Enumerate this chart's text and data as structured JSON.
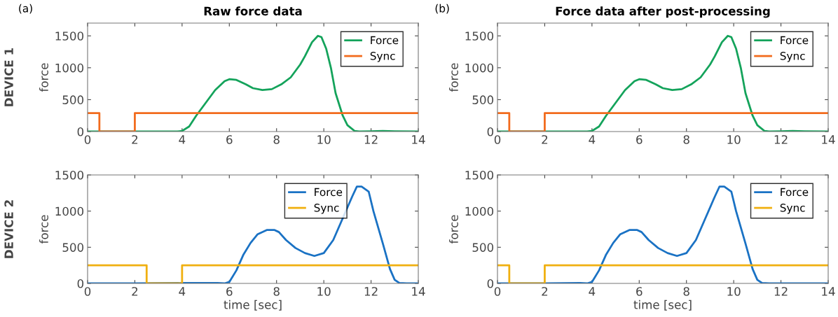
{
  "chart_data": [
    {
      "type": "line",
      "title": "Raw force data",
      "ylabel": "force",
      "annotations": [
        "(a)",
        "DEVICE 1"
      ],
      "xlim": [
        0,
        14
      ],
      "ylim": [
        0,
        1700
      ],
      "xticks": [
        0,
        2,
        4,
        6,
        8,
        10,
        12,
        14
      ],
      "yticks": [
        0,
        500,
        1000,
        1500
      ],
      "legend": "top right",
      "grid": false,
      "series": [
        {
          "name": "Force",
          "color": "#14a35b",
          "x": [
            0,
            1,
            2,
            3,
            3.8,
            4.0,
            4.3,
            4.6,
            5.0,
            5.4,
            5.8,
            6.0,
            6.3,
            6.7,
            7.0,
            7.4,
            7.8,
            8.2,
            8.6,
            9.0,
            9.2,
            9.5,
            9.75,
            9.9,
            10.1,
            10.3,
            10.5,
            10.8,
            11.0,
            11.3,
            11.5,
            12,
            12.5,
            13,
            14
          ],
          "values": [
            0,
            0,
            0,
            0,
            0,
            10,
            80,
            250,
            450,
            650,
            790,
            820,
            810,
            740,
            680,
            650,
            665,
            740,
            850,
            1050,
            1180,
            1400,
            1500,
            1480,
            1300,
            1000,
            600,
            250,
            100,
            10,
            0,
            5,
            10,
            5,
            0
          ]
        },
        {
          "name": "Sync",
          "type": "step",
          "color": "#f26b1d",
          "x": [
            0,
            0.5,
            2,
            14
          ],
          "values": [
            290,
            0,
            290,
            290
          ]
        }
      ]
    },
    {
      "type": "line",
      "title": "Force data after post-processing",
      "ylabel": "force",
      "annotations": [
        "(b)"
      ],
      "xlim": [
        0,
        14
      ],
      "ylim": [
        0,
        1700
      ],
      "xticks": [
        0,
        2,
        4,
        6,
        8,
        10,
        12,
        14
      ],
      "yticks": [
        0,
        500,
        1000,
        1500
      ],
      "legend": "top right",
      "grid": false,
      "series": [
        {
          "name": "Force",
          "color": "#14a35b",
          "x": [
            0,
            1,
            2,
            3,
            3.8,
            4.0,
            4.3,
            4.6,
            5.0,
            5.4,
            5.8,
            6.0,
            6.3,
            6.7,
            7.0,
            7.4,
            7.8,
            8.2,
            8.6,
            9.0,
            9.2,
            9.5,
            9.75,
            9.9,
            10.1,
            10.3,
            10.5,
            10.8,
            11.0,
            11.3,
            11.5,
            12,
            12.5,
            13,
            14
          ],
          "values": [
            0,
            0,
            0,
            0,
            0,
            10,
            80,
            250,
            450,
            650,
            790,
            820,
            810,
            740,
            680,
            650,
            665,
            740,
            850,
            1050,
            1180,
            1400,
            1500,
            1480,
            1300,
            1000,
            600,
            250,
            100,
            10,
            0,
            5,
            10,
            5,
            0
          ]
        },
        {
          "name": "Sync",
          "type": "step",
          "color": "#f26b1d",
          "x": [
            0,
            0.5,
            2,
            14
          ],
          "values": [
            290,
            0,
            290,
            290
          ]
        }
      ]
    },
    {
      "type": "line",
      "xlabel": "time [sec]",
      "ylabel": "force",
      "annotations": [
        "DEVICE 2"
      ],
      "xlim": [
        0,
        14
      ],
      "ylim": [
        0,
        1500
      ],
      "xticks": [
        0,
        2,
        4,
        6,
        8,
        10,
        12,
        14
      ],
      "yticks": [
        0,
        500,
        1000,
        1500
      ],
      "legend": "top",
      "grid": false,
      "series": [
        {
          "name": "Force",
          "color": "#1a72c4",
          "x": [
            0,
            2,
            4,
            5.5,
            5.8,
            6.0,
            6.3,
            6.6,
            6.9,
            7.2,
            7.6,
            7.9,
            8.1,
            8.4,
            8.8,
            9.2,
            9.6,
            10.0,
            10.4,
            10.8,
            11.2,
            11.4,
            11.6,
            11.9,
            12.1,
            12.5,
            12.8,
            13.0,
            13.2,
            13.5,
            14
          ],
          "values": [
            0,
            0,
            5,
            5,
            0,
            20,
            180,
            400,
            560,
            680,
            740,
            740,
            710,
            600,
            490,
            420,
            380,
            420,
            600,
            900,
            1200,
            1340,
            1340,
            1270,
            1000,
            550,
            200,
            50,
            5,
            0,
            0
          ]
        },
        {
          "name": "Sync",
          "type": "step",
          "color": "#f0b010",
          "x": [
            0,
            2.5,
            4,
            14
          ],
          "values": [
            250,
            0,
            250,
            250
          ]
        }
      ]
    },
    {
      "type": "line",
      "xlabel": "time [sec]",
      "ylabel": "force",
      "xlim": [
        0,
        14
      ],
      "ylim": [
        0,
        1500
      ],
      "xticks": [
        0,
        2,
        4,
        6,
        8,
        10,
        12,
        14
      ],
      "yticks": [
        0,
        500,
        1000,
        1500
      ],
      "legend": "top right",
      "grid": false,
      "series": [
        {
          "name": "Force",
          "color": "#1a72c4",
          "x": [
            0,
            2,
            3.5,
            3.8,
            4.0,
            4.3,
            4.6,
            4.9,
            5.2,
            5.6,
            5.9,
            6.1,
            6.4,
            6.8,
            7.2,
            7.6,
            8.0,
            8.4,
            8.8,
            9.2,
            9.4,
            9.6,
            9.9,
            10.1,
            10.5,
            10.8,
            11.0,
            11.2,
            11.5,
            12,
            14
          ],
          "values": [
            0,
            0,
            5,
            0,
            20,
            180,
            400,
            560,
            680,
            740,
            740,
            710,
            600,
            490,
            420,
            380,
            420,
            600,
            900,
            1200,
            1340,
            1340,
            1270,
            1000,
            550,
            200,
            50,
            5,
            0,
            0,
            0
          ]
        },
        {
          "name": "Sync",
          "type": "step",
          "color": "#f0b010",
          "x": [
            0,
            0.5,
            2,
            14
          ],
          "values": [
            250,
            0,
            250,
            250
          ]
        }
      ]
    }
  ]
}
